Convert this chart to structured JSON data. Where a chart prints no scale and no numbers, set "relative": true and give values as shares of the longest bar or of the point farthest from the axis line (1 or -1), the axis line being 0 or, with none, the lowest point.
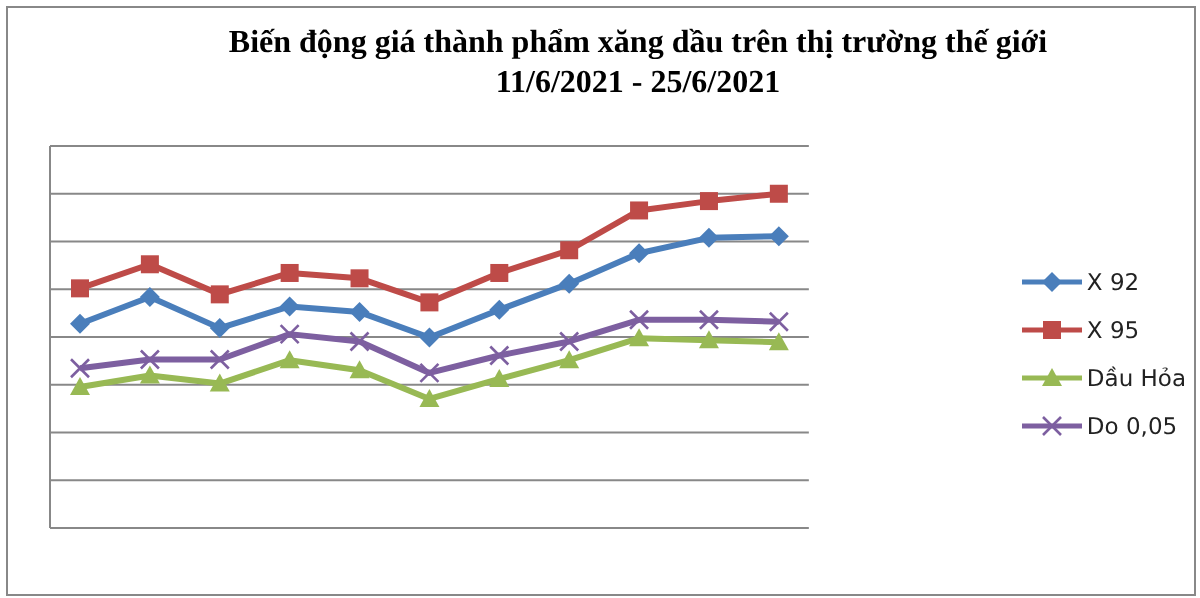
{
  "chart_data": {
    "type": "line",
    "title": "Biến động giá thành phẩm xăng dầu trên thị trường thế giới",
    "subtitle": "11/6/2021 - 25/6/2021",
    "relative": true,
    "categories": [
      null,
      null,
      null,
      null,
      null,
      null,
      null,
      null,
      null,
      null,
      null
    ],
    "grid": "y",
    "legend": "right",
    "line_style": "solid",
    "series": [
      {
        "name": "X 92",
        "color": "#4a7ebb",
        "marker": "diamond",
        "values": [
          0.611,
          0.691,
          0.598,
          0.663,
          0.646,
          0.57,
          0.653,
          0.731,
          0.822,
          0.868,
          0.873
        ]
      },
      {
        "name": "X 95",
        "color": "#be4b48",
        "marker": "square",
        "values": [
          0.717,
          0.789,
          0.699,
          0.763,
          0.747,
          0.675,
          0.763,
          0.831,
          0.95,
          0.978,
          1
        ]
      },
      {
        "name": "Dầu Hỏa",
        "color": "#98b954",
        "marker": "triangle",
        "values": [
          0.422,
          0.456,
          0.432,
          0.502,
          0.472,
          0.386,
          0.446,
          0.502,
          0.568,
          0.562,
          0.556
        ]
      },
      {
        "name": "Do 0,05",
        "color": "#7d5fa0",
        "marker": "cross",
        "values": [
          0.478,
          0.504,
          0.504,
          0.58,
          0.558,
          0.464,
          0.516,
          0.558,
          0.623,
          0.623,
          0.617
        ]
      }
    ]
  }
}
